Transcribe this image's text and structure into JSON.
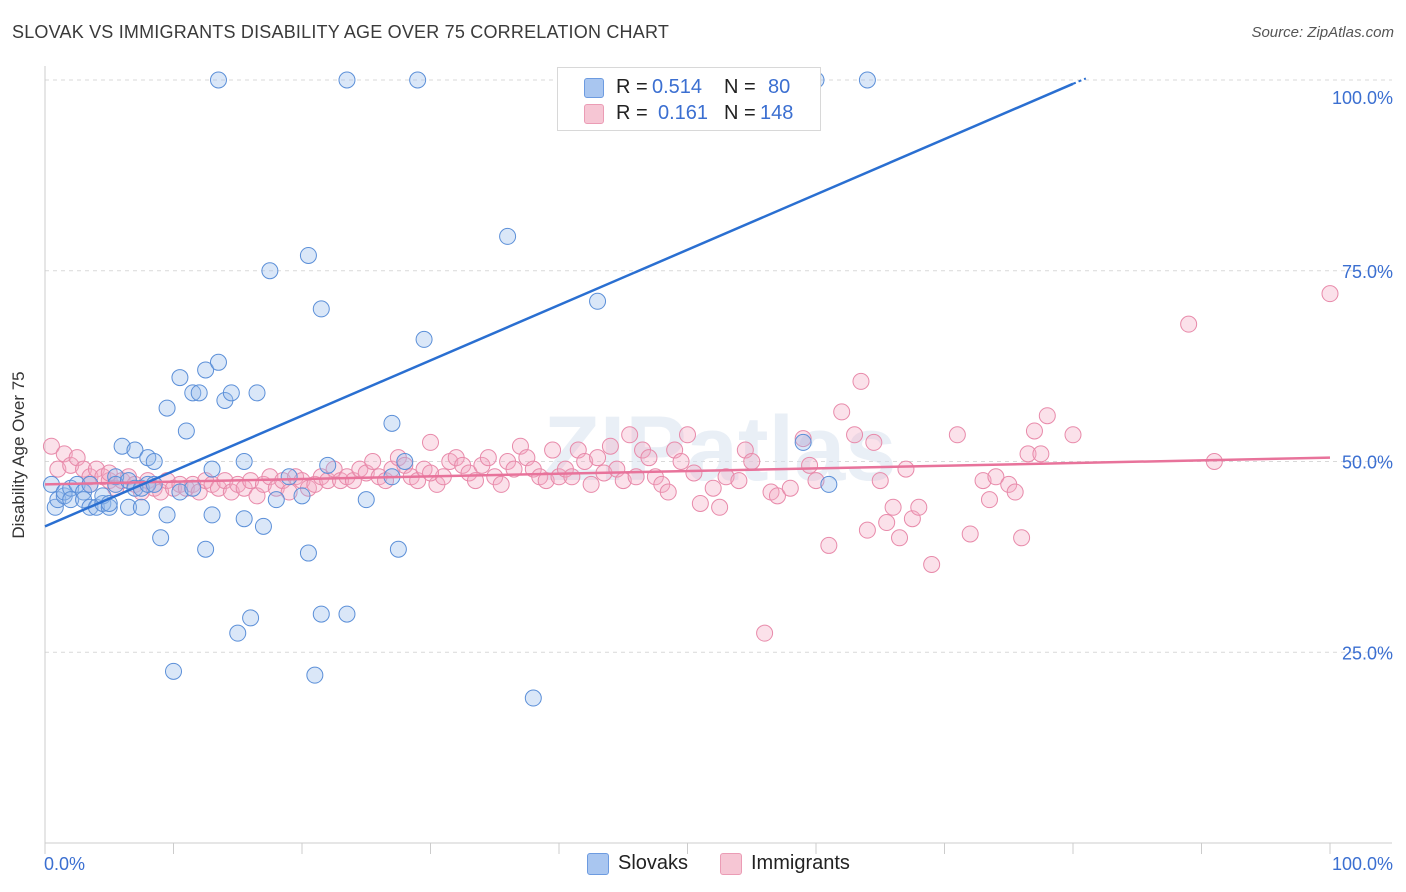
{
  "title": "SLOVAK VS IMMIGRANTS DISABILITY AGE OVER 75 CORRELATION CHART",
  "source": "Source: ZipAtlas.com",
  "watermark": "ZIPatlas",
  "legend": {
    "rows": [
      {
        "r_label": "R =",
        "r_value": "0.514",
        "n_label": "N =",
        "n_value": "80",
        "color": "#a9c6f0"
      },
      {
        "r_label": "R =",
        "r_value": "0.161",
        "n_label": "N =",
        "n_value": "148",
        "color": "#f6b8cb"
      }
    ]
  },
  "bottom_legend": [
    {
      "label": "Slovaks",
      "color": "#a9c6f0"
    },
    {
      "label": "Immigrants",
      "color": "#f6b8cb"
    }
  ],
  "colors": {
    "slovaks_fill": "rgba(150,185,235,0.35)",
    "slovaks_stroke": "#5b8fd8",
    "slovaks_line": "#2a6fd1",
    "immigrants_fill": "rgba(244,170,195,0.35)",
    "immigrants_stroke": "#e88aaa",
    "immigrants_line": "#e8739b",
    "tick_label": "#3b6fd1",
    "grid": "#d9d9d9"
  },
  "chart_data": {
    "type": "scatter",
    "title": "SLOVAK VS IMMIGRANTS DISABILITY AGE OVER 75 CORRELATION CHART",
    "xlabel": "",
    "ylabel": "Disability Age Over 75",
    "xlim": [
      0,
      100
    ],
    "ylim": [
      0,
      100
    ],
    "x_tick_labels": [
      "0.0%",
      "100.0%"
    ],
    "y_ticks": [
      25,
      50,
      75,
      100
    ],
    "y_tick_labels": [
      "25.0%",
      "50.0%",
      "75.0%",
      "100.0%"
    ],
    "grid": true,
    "legend_position": "top-center",
    "series": [
      {
        "name": "Slovaks",
        "R": 0.514,
        "N": 80,
        "trend": {
          "x": [
            0,
            80
          ],
          "y": [
            41.5,
            99.5
          ]
        },
        "points": [
          [
            0.5,
            47
          ],
          [
            0.8,
            44
          ],
          [
            1,
            45
          ],
          [
            1.5,
            45.5
          ],
          [
            1.5,
            46
          ],
          [
            2,
            46.5
          ],
          [
            2,
            45
          ],
          [
            2.5,
            47
          ],
          [
            3,
            46
          ],
          [
            3,
            45
          ],
          [
            3.5,
            44
          ],
          [
            3.5,
            47
          ],
          [
            4,
            44
          ],
          [
            4.5,
            44.5
          ],
          [
            4.5,
            45.5
          ],
          [
            5,
            44
          ],
          [
            5,
            44.5
          ],
          [
            5.5,
            48
          ],
          [
            5.5,
            47
          ],
          [
            6,
            52
          ],
          [
            6.5,
            47.5
          ],
          [
            6.5,
            44
          ],
          [
            7,
            46.5
          ],
          [
            7,
            51.5
          ],
          [
            7.5,
            46.5
          ],
          [
            7.5,
            44
          ],
          [
            8,
            50.5
          ],
          [
            8,
            47
          ],
          [
            8.5,
            47
          ],
          [
            8.5,
            50
          ],
          [
            9,
            40
          ],
          [
            9.5,
            43
          ],
          [
            9.5,
            57
          ],
          [
            10,
            22.5
          ],
          [
            10.5,
            61
          ],
          [
            10.5,
            46
          ],
          [
            11,
            54
          ],
          [
            11.5,
            59
          ],
          [
            11.5,
            46.5
          ],
          [
            12,
            59
          ],
          [
            12.5,
            62
          ],
          [
            12.5,
            38.5
          ],
          [
            13,
            43
          ],
          [
            13,
            49
          ],
          [
            13.5,
            100
          ],
          [
            13.5,
            63
          ],
          [
            14,
            58
          ],
          [
            14.5,
            59
          ],
          [
            15,
            27.5
          ],
          [
            15.5,
            42.5
          ],
          [
            15.5,
            50
          ],
          [
            16,
            29.5
          ],
          [
            16.5,
            59
          ],
          [
            17,
            41.5
          ],
          [
            17.5,
            75
          ],
          [
            18,
            45
          ],
          [
            19,
            48
          ],
          [
            20,
            45.5
          ],
          [
            20.5,
            77
          ],
          [
            20.5,
            38
          ],
          [
            21,
            22
          ],
          [
            21.5,
            70
          ],
          [
            21.5,
            30
          ],
          [
            22,
            49.5
          ],
          [
            23.5,
            30
          ],
          [
            23.5,
            100
          ],
          [
            25,
            45
          ],
          [
            27,
            55
          ],
          [
            27,
            48
          ],
          [
            27.5,
            38.5
          ],
          [
            28,
            50
          ],
          [
            29,
            100
          ],
          [
            29.5,
            66
          ],
          [
            36,
            79.5
          ],
          [
            38,
            19
          ],
          [
            43,
            71
          ],
          [
            59,
            52.5
          ],
          [
            60,
            100
          ],
          [
            61,
            47
          ],
          [
            64,
            100
          ]
        ]
      },
      {
        "name": "Immigrants",
        "R": 0.161,
        "N": 148,
        "trend": {
          "x": [
            0,
            100
          ],
          "y": [
            47,
            50.5
          ]
        },
        "points": [
          [
            0.5,
            52
          ],
          [
            1,
            49
          ],
          [
            1.5,
            51
          ],
          [
            2,
            49.5
          ],
          [
            2.5,
            50.5
          ],
          [
            3,
            49
          ],
          [
            3.5,
            48
          ],
          [
            3.5,
            47
          ],
          [
            4,
            49
          ],
          [
            4.5,
            48
          ],
          [
            5,
            47.5
          ],
          [
            5,
            48.5
          ],
          [
            5.5,
            46.5
          ],
          [
            6,
            47.5
          ],
          [
            6.5,
            48
          ],
          [
            7,
            47
          ],
          [
            7.5,
            46
          ],
          [
            8,
            47.5
          ],
          [
            8.5,
            46.5
          ],
          [
            9,
            46
          ],
          [
            9.5,
            47.5
          ],
          [
            10,
            46.5
          ],
          [
            10.5,
            47
          ],
          [
            11,
            46.5
          ],
          [
            11.5,
            47
          ],
          [
            12,
            46
          ],
          [
            12.5,
            47.5
          ],
          [
            13,
            47
          ],
          [
            13.5,
            46.5
          ],
          [
            14,
            47.5
          ],
          [
            14.5,
            46
          ],
          [
            15,
            47
          ],
          [
            15.5,
            46.5
          ],
          [
            16,
            47.5
          ],
          [
            16.5,
            45.5
          ],
          [
            17,
            47
          ],
          [
            17.5,
            48
          ],
          [
            18,
            46.5
          ],
          [
            18.5,
            47.5
          ],
          [
            19,
            46
          ],
          [
            19.5,
            48
          ],
          [
            20,
            47.5
          ],
          [
            20.5,
            46.5
          ],
          [
            21,
            47
          ],
          [
            21.5,
            48
          ],
          [
            22,
            47.5
          ],
          [
            22.5,
            49
          ],
          [
            23,
            47.5
          ],
          [
            23.5,
            48
          ],
          [
            24,
            47.5
          ],
          [
            24.5,
            49
          ],
          [
            25,
            48.5
          ],
          [
            25.5,
            50
          ],
          [
            26,
            48
          ],
          [
            26.5,
            47.5
          ],
          [
            27,
            49
          ],
          [
            27.5,
            50.5
          ],
          [
            28,
            49.5
          ],
          [
            28.5,
            48
          ],
          [
            29,
            47.5
          ],
          [
            29.5,
            49
          ],
          [
            30,
            52.5
          ],
          [
            30.5,
            47
          ],
          [
            31,
            48
          ],
          [
            31.5,
            50
          ],
          [
            32,
            50.5
          ],
          [
            32.5,
            49.5
          ],
          [
            33,
            48.5
          ],
          [
            33.5,
            47.5
          ],
          [
            34,
            49.5
          ],
          [
            34.5,
            50.5
          ],
          [
            35,
            48
          ],
          [
            35.5,
            47
          ],
          [
            36,
            50
          ],
          [
            36.5,
            49
          ],
          [
            37,
            52
          ],
          [
            37.5,
            50.5
          ],
          [
            38,
            49
          ],
          [
            38.5,
            48
          ],
          [
            39,
            47.5
          ],
          [
            39.5,
            51.5
          ],
          [
            40,
            48
          ],
          [
            40.5,
            49
          ],
          [
            41,
            48
          ],
          [
            41.5,
            51.5
          ],
          [
            42,
            50
          ],
          [
            42.5,
            47
          ],
          [
            43,
            50.5
          ],
          [
            43.5,
            48.5
          ],
          [
            44,
            52
          ],
          [
            44.5,
            49
          ],
          [
            45,
            47.5
          ],
          [
            45.5,
            53.5
          ],
          [
            46,
            48
          ],
          [
            46.5,
            51.5
          ],
          [
            47,
            50.5
          ],
          [
            47.5,
            48
          ],
          [
            48,
            47
          ],
          [
            48.5,
            46
          ],
          [
            49,
            51.5
          ],
          [
            49.5,
            50
          ],
          [
            50,
            53.5
          ],
          [
            50.5,
            48.5
          ],
          [
            51,
            44.5
          ],
          [
            52,
            46.5
          ],
          [
            52.5,
            44
          ],
          [
            53,
            48
          ],
          [
            54,
            47.5
          ],
          [
            54.5,
            51.5
          ],
          [
            55,
            50
          ],
          [
            56,
            27.5
          ],
          [
            56.5,
            46
          ],
          [
            57,
            45.5
          ],
          [
            58,
            46.5
          ],
          [
            59,
            53
          ],
          [
            59.5,
            49.5
          ],
          [
            60,
            47.5
          ],
          [
            61,
            39
          ],
          [
            62,
            56.5
          ],
          [
            63,
            53.5
          ],
          [
            63.5,
            60.5
          ],
          [
            64,
            41
          ],
          [
            64.5,
            52.5
          ],
          [
            65,
            47.5
          ],
          [
            65.5,
            42
          ],
          [
            66,
            44
          ],
          [
            66.5,
            40
          ],
          [
            67,
            49
          ],
          [
            67.5,
            42.5
          ],
          [
            68,
            44
          ],
          [
            69,
            36.5
          ],
          [
            71,
            53.5
          ],
          [
            72,
            40.5
          ],
          [
            73,
            47.5
          ],
          [
            73.5,
            45
          ],
          [
            74,
            48
          ],
          [
            75,
            47
          ],
          [
            75.5,
            46
          ],
          [
            76,
            40
          ],
          [
            76.5,
            51
          ],
          [
            77,
            54
          ],
          [
            77.5,
            51
          ],
          [
            78,
            56
          ],
          [
            80,
            53.5
          ],
          [
            89,
            68
          ],
          [
            91,
            50
          ],
          [
            100,
            72
          ],
          [
            30,
            48.5
          ]
        ]
      }
    ]
  }
}
